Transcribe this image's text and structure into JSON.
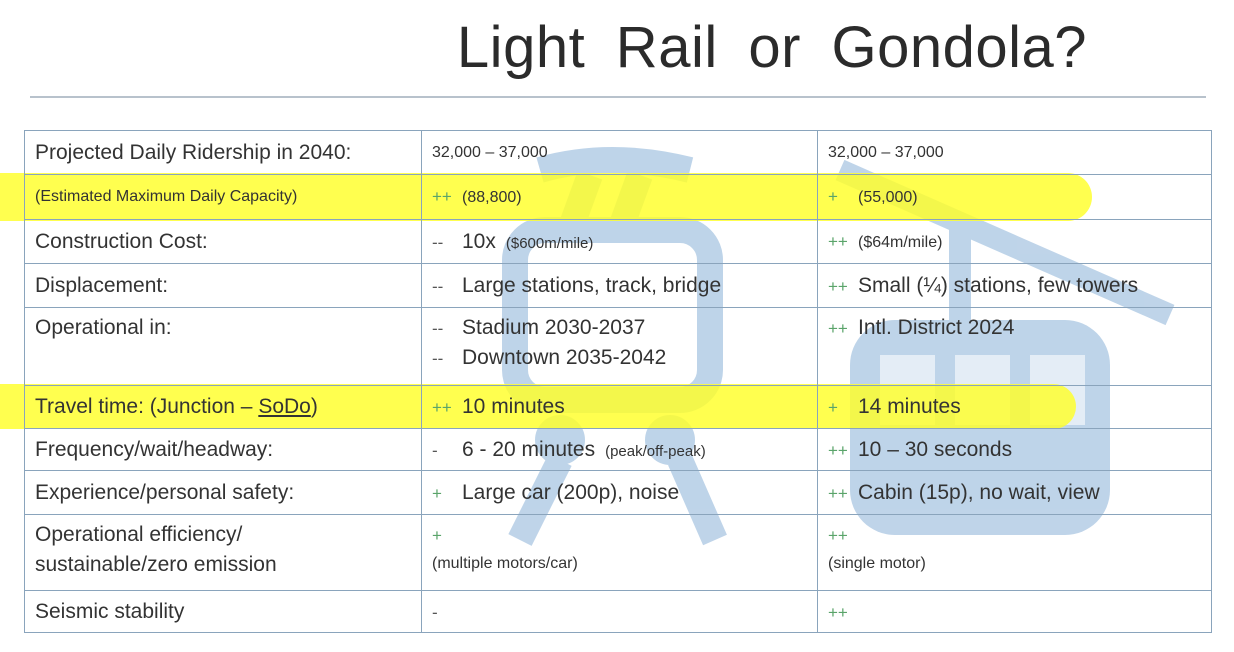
{
  "title": "Light Rail  or  Gondola?",
  "colors": {
    "highlight": "#ffff28",
    "plus": "#5aa46a",
    "border": "#8aa4bc",
    "watermark": "#a9c6e2"
  },
  "watermark_icons": [
    "tram-icon",
    "gondola-icon"
  ],
  "rows": [
    {
      "label": "Projected Daily Ridership in 2040:",
      "rail": {
        "mark": "",
        "text": "32,000 – 37,000"
      },
      "gondola": {
        "mark": "",
        "text": "32,000 – 37,000"
      }
    },
    {
      "label": "(Estimated Maximum Daily Capacity)",
      "highlighted": true,
      "rail": {
        "mark": "++",
        "text": "(88,800)"
      },
      "gondola": {
        "mark": "+",
        "text": "(55,000)"
      }
    },
    {
      "label": "Construction Cost:",
      "rail": {
        "mark": "--",
        "text": "10x",
        "note": "($600m/mile)"
      },
      "gondola": {
        "mark": "++",
        "text": "($64m/mile)"
      }
    },
    {
      "label": "Displacement:",
      "rail": {
        "mark": "--",
        "text": "Large stations, track, bridge"
      },
      "gondola": {
        "mark": "++",
        "text": "Small (¼) stations, few towers"
      }
    },
    {
      "label": "Operational in:",
      "rail": {
        "mark": "--",
        "text": "Stadium 2030-2037",
        "mark2": "--",
        "text2": "Downtown 2035-2042"
      },
      "gondola": {
        "mark": "++",
        "text": "Intl. District 2024"
      }
    },
    {
      "label": "Travel time: (Junction – ",
      "label_link": "SoDo",
      "label_end": ")",
      "highlighted": true,
      "rail": {
        "mark": "++",
        "text": "10 minutes"
      },
      "gondola": {
        "mark": "+",
        "text": "14 minutes"
      }
    },
    {
      "label": "Frequency/wait/headway:",
      "rail": {
        "mark": "-",
        "text": "6 - 20 minutes",
        "note": "(peak/off-peak)"
      },
      "gondola": {
        "mark": "++",
        "text": "10 – 30 seconds"
      }
    },
    {
      "label": "Experience/personal safety:",
      "rail": {
        "mark": "+",
        "text": "Large car (200p), noise"
      },
      "gondola": {
        "mark": "++",
        "text": "Cabin (15p), no wait, view"
      }
    },
    {
      "label": "Operational efficiency/",
      "label2": "sustainable/zero emission",
      "rail": {
        "mark": "+",
        "sub": "(multiple motors/car)"
      },
      "gondola": {
        "mark": "++",
        "sub": "(single motor)"
      }
    },
    {
      "label": "Seismic stability",
      "rail": {
        "mark": "-"
      },
      "gondola": {
        "mark": "++"
      }
    }
  ]
}
